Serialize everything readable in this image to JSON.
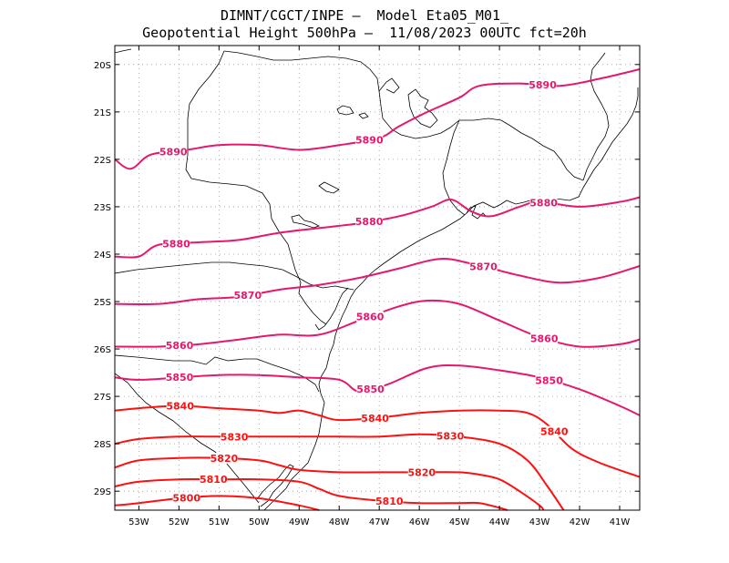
{
  "header": {
    "line1": "DIMNT/CGCT/INPE –  Model Eta05_M01_",
    "line2": "Geopotential Height 500hPa –  11/08/2023 00UTC fct=20h"
  },
  "colors": {
    "high": "#e6186b",
    "low": "#ff1010",
    "coast": "#000000",
    "grid": "#999999"
  },
  "axes": {
    "lon_ticks": [
      "53W",
      "52W",
      "51W",
      "50W",
      "49W",
      "48W",
      "47W",
      "46W",
      "45W",
      "44W",
      "43W",
      "42W",
      "41W"
    ],
    "lat_ticks": [
      "20S",
      "21S",
      "22S",
      "23S",
      "24S",
      "25S",
      "26S",
      "27S",
      "28S",
      "29S"
    ]
  },
  "chart_data": {
    "type": "contour",
    "variable": "Geopotential Height 500hPa",
    "x_range": [
      -53.6,
      -40.5
    ],
    "y_range": [
      -29.4,
      -19.6
    ],
    "contours": [
      {
        "value": 5890,
        "labels": [
          "5890",
          "5890",
          "5890"
        ],
        "points": [
          [
            -53.6,
            -22.0
          ],
          [
            -53.2,
            -22.2
          ],
          [
            -52.7,
            -21.9
          ],
          [
            -51.8,
            -21.8
          ],
          [
            -51.0,
            -21.7
          ],
          [
            -50.0,
            -21.7
          ],
          [
            -49.0,
            -21.8
          ],
          [
            -48.0,
            -21.7
          ],
          [
            -47.0,
            -21.55
          ],
          [
            -46.5,
            -21.3
          ],
          [
            -45.8,
            -21.0
          ],
          [
            -45.0,
            -20.7
          ],
          [
            -44.5,
            -20.45
          ],
          [
            -43.5,
            -20.4
          ],
          [
            -42.5,
            -20.45
          ],
          [
            -41.5,
            -20.3
          ],
          [
            -40.5,
            -20.1
          ]
        ]
      },
      {
        "value": 5880,
        "labels": [
          "5880",
          "5880",
          "5880"
        ],
        "points": [
          [
            -53.6,
            -24.05
          ],
          [
            -53.0,
            -24.05
          ],
          [
            -52.5,
            -23.8
          ],
          [
            -51.5,
            -23.75
          ],
          [
            -50.5,
            -23.7
          ],
          [
            -49.5,
            -23.55
          ],
          [
            -48.5,
            -23.45
          ],
          [
            -47.5,
            -23.35
          ],
          [
            -46.5,
            -23.2
          ],
          [
            -45.7,
            -23.0
          ],
          [
            -45.2,
            -22.85
          ],
          [
            -44.7,
            -23.1
          ],
          [
            -44.2,
            -23.2
          ],
          [
            -43.5,
            -23.0
          ],
          [
            -43.0,
            -22.9
          ],
          [
            -42.0,
            -23.0
          ],
          [
            -41.0,
            -22.9
          ],
          [
            -40.5,
            -22.8
          ]
        ]
      },
      {
        "value": 5870,
        "labels": [
          "5870",
          "5870"
        ],
        "points": [
          [
            -53.6,
            -25.05
          ],
          [
            -52.5,
            -25.05
          ],
          [
            -51.5,
            -24.95
          ],
          [
            -50.5,
            -24.9
          ],
          [
            -49.5,
            -24.75
          ],
          [
            -48.5,
            -24.65
          ],
          [
            -47.5,
            -24.5
          ],
          [
            -46.5,
            -24.3
          ],
          [
            -45.5,
            -24.1
          ],
          [
            -44.7,
            -24.2
          ],
          [
            -43.5,
            -24.45
          ],
          [
            -42.5,
            -24.6
          ],
          [
            -41.5,
            -24.5
          ],
          [
            -40.5,
            -24.25
          ]
        ]
      },
      {
        "value": 5860,
        "labels": [
          "5860",
          "5860",
          "5860"
        ],
        "points": [
          [
            -53.6,
            -25.95
          ],
          [
            -52.5,
            -25.95
          ],
          [
            -51.5,
            -25.9
          ],
          [
            -50.5,
            -25.8
          ],
          [
            -49.5,
            -25.7
          ],
          [
            -48.5,
            -25.7
          ],
          [
            -47.5,
            -25.4
          ],
          [
            -46.5,
            -25.1
          ],
          [
            -45.8,
            -24.98
          ],
          [
            -45.0,
            -25.05
          ],
          [
            -44.0,
            -25.4
          ],
          [
            -43.0,
            -25.75
          ],
          [
            -42.0,
            -25.95
          ],
          [
            -41.0,
            -25.9
          ],
          [
            -40.5,
            -25.8
          ]
        ]
      },
      {
        "value": 5850,
        "labels": [
          "5850",
          "5850",
          "5850"
        ],
        "points": [
          [
            -53.6,
            -26.6
          ],
          [
            -53.0,
            -26.65
          ],
          [
            -52.0,
            -26.6
          ],
          [
            -51.0,
            -26.55
          ],
          [
            -50.0,
            -26.55
          ],
          [
            -49.0,
            -26.6
          ],
          [
            -48.0,
            -26.65
          ],
          [
            -47.5,
            -26.9
          ],
          [
            -46.8,
            -26.75
          ],
          [
            -45.8,
            -26.4
          ],
          [
            -45.0,
            -26.35
          ],
          [
            -44.0,
            -26.45
          ],
          [
            -43.0,
            -26.6
          ],
          [
            -42.0,
            -26.85
          ],
          [
            -41.0,
            -27.2
          ],
          [
            -40.5,
            -27.4
          ]
        ]
      },
      {
        "value": 5840,
        "labels": [
          "5840",
          "5840",
          "5840"
        ],
        "points": [
          [
            -53.6,
            -27.3
          ],
          [
            -53.0,
            -27.25
          ],
          [
            -52.0,
            -27.2
          ],
          [
            -51.0,
            -27.25
          ],
          [
            -50.0,
            -27.3
          ],
          [
            -49.5,
            -27.35
          ],
          [
            -49.0,
            -27.3
          ],
          [
            -48.5,
            -27.4
          ],
          [
            -48.0,
            -27.5
          ],
          [
            -47.0,
            -27.45
          ],
          [
            -46.0,
            -27.35
          ],
          [
            -45.0,
            -27.3
          ],
          [
            -44.0,
            -27.3
          ],
          [
            -43.3,
            -27.35
          ],
          [
            -42.8,
            -27.6
          ],
          [
            -42.2,
            -28.1
          ],
          [
            -41.5,
            -28.4
          ],
          [
            -40.5,
            -28.7
          ]
        ]
      },
      {
        "value": 5830,
        "labels": [
          "5830",
          "5830"
        ],
        "points": [
          [
            -53.6,
            -28.0
          ],
          [
            -53.0,
            -27.9
          ],
          [
            -52.0,
            -27.85
          ],
          [
            -51.0,
            -27.85
          ],
          [
            -50.0,
            -27.85
          ],
          [
            -49.0,
            -27.85
          ],
          [
            -48.0,
            -27.85
          ],
          [
            -47.0,
            -27.85
          ],
          [
            -46.0,
            -27.8
          ],
          [
            -45.0,
            -27.85
          ],
          [
            -44.0,
            -28.0
          ],
          [
            -43.3,
            -28.35
          ],
          [
            -42.8,
            -28.9
          ],
          [
            -42.4,
            -29.4
          ]
        ]
      },
      {
        "value": 5820,
        "labels": [
          "5820",
          "5820"
        ],
        "points": [
          [
            -53.6,
            -28.5
          ],
          [
            -53.0,
            -28.35
          ],
          [
            -52.0,
            -28.3
          ],
          [
            -51.0,
            -28.3
          ],
          [
            -50.0,
            -28.35
          ],
          [
            -49.5,
            -28.45
          ],
          [
            -49.0,
            -28.55
          ],
          [
            -48.0,
            -28.6
          ],
          [
            -47.0,
            -28.6
          ],
          [
            -46.0,
            -28.6
          ],
          [
            -45.0,
            -28.6
          ],
          [
            -44.5,
            -28.65
          ],
          [
            -44.0,
            -28.75
          ],
          [
            -43.5,
            -29.0
          ],
          [
            -43.0,
            -29.3
          ],
          [
            -42.9,
            -29.4
          ]
        ]
      },
      {
        "value": 5810,
        "labels": [
          "5810",
          "5810"
        ],
        "points": [
          [
            -53.6,
            -28.9
          ],
          [
            -53.0,
            -28.8
          ],
          [
            -52.0,
            -28.75
          ],
          [
            -51.0,
            -28.75
          ],
          [
            -50.0,
            -28.75
          ],
          [
            -49.0,
            -28.8
          ],
          [
            -48.5,
            -28.95
          ],
          [
            -48.0,
            -29.1
          ],
          [
            -47.0,
            -29.2
          ],
          [
            -46.0,
            -29.25
          ],
          [
            -45.0,
            -29.25
          ],
          [
            -44.5,
            -29.25
          ],
          [
            -44.0,
            -29.35
          ],
          [
            -43.8,
            -29.4
          ]
        ]
      },
      {
        "value": 5800,
        "labels": [
          "5800"
        ],
        "points": [
          [
            -53.6,
            -29.3
          ],
          [
            -53.0,
            -29.25
          ],
          [
            -52.0,
            -29.15
          ],
          [
            -51.0,
            -29.1
          ],
          [
            -50.0,
            -29.15
          ],
          [
            -49.0,
            -29.3
          ],
          [
            -48.5,
            -29.4
          ]
        ]
      }
    ]
  }
}
